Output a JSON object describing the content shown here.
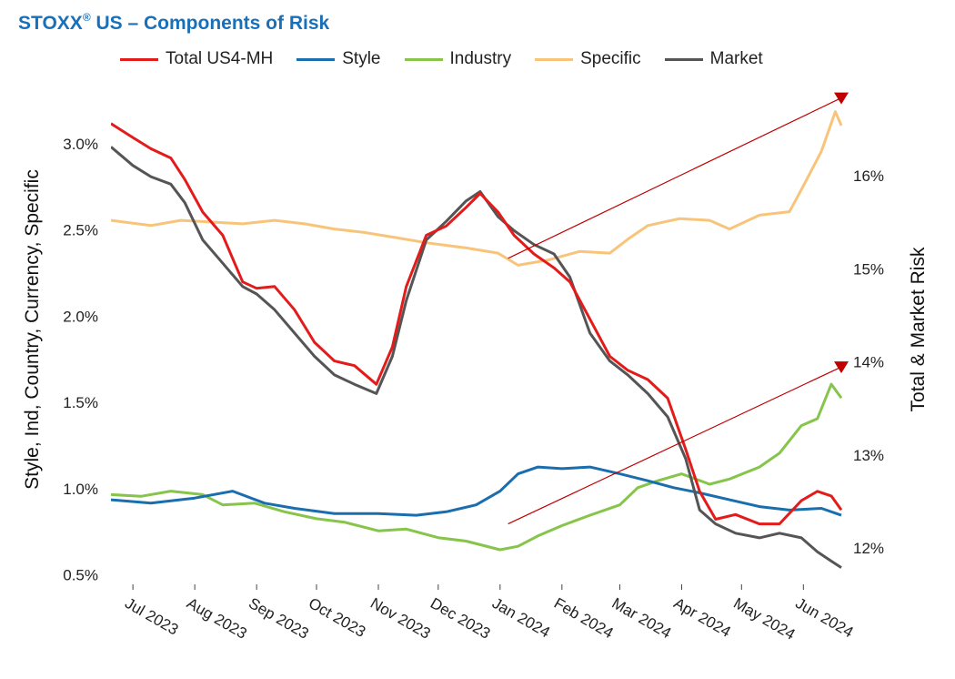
{
  "title": {
    "prefix": "STOXX",
    "sup": "®",
    "rest": " US – Components of Risk"
  },
  "chart_data": {
    "type": "line",
    "title": "STOXX® US – Components of Risk",
    "x_tick_labels": [
      "Jul 2023",
      "Aug 2023",
      "Sep 2023",
      "Oct 2023",
      "Nov 2023",
      "Dec 2023",
      "Jan 2024",
      "Feb 2024",
      "Mar 2024",
      "Apr 2024",
      "May 2024",
      "Jun 2024"
    ],
    "x_range": [
      "2023-06-20",
      "2024-06-20"
    ],
    "y_left": {
      "label": "Style, Ind, Country, Currency, Specific",
      "ticks": [
        0.5,
        1.0,
        1.5,
        2.0,
        2.5,
        3.0
      ],
      "tick_labels": [
        "0.5%",
        "1.0%",
        "1.5%",
        "2.0%",
        "2.5%",
        "3.0%"
      ],
      "range": [
        0.45,
        3.3
      ]
    },
    "y_right": {
      "label": "Total & Market Risk",
      "ticks": [
        12,
        13,
        14,
        15,
        16
      ],
      "tick_labels": [
        "12%",
        "13%",
        "14%",
        "15%",
        "16%"
      ],
      "range": [
        11.62,
        16.9
      ]
    },
    "legend_position": "top",
    "series": [
      {
        "name": "Total US4-MH",
        "axis": "right",
        "color": "#e31b1b",
        "points": [
          [
            "2023-06-20",
            16.55
          ],
          [
            "2023-07-01",
            16.4
          ],
          [
            "2023-07-10",
            16.28
          ],
          [
            "2023-07-20",
            16.18
          ],
          [
            "2023-07-27",
            15.95
          ],
          [
            "2023-08-05",
            15.6
          ],
          [
            "2023-08-15",
            15.35
          ],
          [
            "2023-08-25",
            14.85
          ],
          [
            "2023-09-01",
            14.78
          ],
          [
            "2023-09-10",
            14.8
          ],
          [
            "2023-09-20",
            14.55
          ],
          [
            "2023-09-30",
            14.2
          ],
          [
            "2023-10-10",
            14.0
          ],
          [
            "2023-10-20",
            13.95
          ],
          [
            "2023-10-31",
            13.75
          ],
          [
            "2023-11-08",
            14.15
          ],
          [
            "2023-11-15",
            14.8
          ],
          [
            "2023-11-25",
            15.35
          ],
          [
            "2023-12-05",
            15.45
          ],
          [
            "2023-12-15",
            15.65
          ],
          [
            "2023-12-22",
            15.8
          ],
          [
            "2023-12-31",
            15.6
          ],
          [
            "2024-01-08",
            15.35
          ],
          [
            "2024-01-18",
            15.15
          ],
          [
            "2024-01-28",
            15.0
          ],
          [
            "2024-02-05",
            14.85
          ],
          [
            "2024-02-15",
            14.45
          ],
          [
            "2024-02-25",
            14.05
          ],
          [
            "2024-03-05",
            13.9
          ],
          [
            "2024-03-15",
            13.8
          ],
          [
            "2024-03-25",
            13.6
          ],
          [
            "2024-04-03",
            13.05
          ],
          [
            "2024-04-10",
            12.6
          ],
          [
            "2024-04-18",
            12.3
          ],
          [
            "2024-04-28",
            12.35
          ],
          [
            "2024-05-10",
            12.25
          ],
          [
            "2024-05-20",
            12.25
          ],
          [
            "2024-05-31",
            12.5
          ],
          [
            "2024-06-08",
            12.6
          ],
          [
            "2024-06-15",
            12.55
          ],
          [
            "2024-06-20",
            12.4
          ]
        ]
      },
      {
        "name": "Style",
        "axis": "left",
        "color": "#1a6ead",
        "points": [
          [
            "2023-06-20",
            0.93
          ],
          [
            "2023-07-10",
            0.91
          ],
          [
            "2023-08-01",
            0.94
          ],
          [
            "2023-08-20",
            0.98
          ],
          [
            "2023-09-05",
            0.91
          ],
          [
            "2023-09-20",
            0.88
          ],
          [
            "2023-10-10",
            0.85
          ],
          [
            "2023-11-01",
            0.85
          ],
          [
            "2023-11-20",
            0.84
          ],
          [
            "2023-12-05",
            0.86
          ],
          [
            "2023-12-20",
            0.9
          ],
          [
            "2024-01-01",
            0.98
          ],
          [
            "2024-01-10",
            1.08
          ],
          [
            "2024-01-20",
            1.12
          ],
          [
            "2024-02-01",
            1.11
          ],
          [
            "2024-02-15",
            1.12
          ],
          [
            "2024-03-01",
            1.08
          ],
          [
            "2024-03-15",
            1.04
          ],
          [
            "2024-03-28",
            1.0
          ],
          [
            "2024-04-10",
            0.97
          ],
          [
            "2024-04-25",
            0.93
          ],
          [
            "2024-05-10",
            0.89
          ],
          [
            "2024-05-25",
            0.87
          ],
          [
            "2024-06-10",
            0.88
          ],
          [
            "2024-06-20",
            0.84
          ]
        ]
      },
      {
        "name": "Industry",
        "axis": "left",
        "color": "#86c44a",
        "points": [
          [
            "2023-06-20",
            0.96
          ],
          [
            "2023-07-05",
            0.95
          ],
          [
            "2023-07-20",
            0.98
          ],
          [
            "2023-08-05",
            0.96
          ],
          [
            "2023-08-15",
            0.9
          ],
          [
            "2023-08-31",
            0.91
          ],
          [
            "2023-09-15",
            0.86
          ],
          [
            "2023-10-01",
            0.82
          ],
          [
            "2023-10-15",
            0.8
          ],
          [
            "2023-11-01",
            0.75
          ],
          [
            "2023-11-15",
            0.76
          ],
          [
            "2023-12-01",
            0.71
          ],
          [
            "2023-12-15",
            0.69
          ],
          [
            "2024-01-01",
            0.64
          ],
          [
            "2024-01-10",
            0.66
          ],
          [
            "2024-01-20",
            0.72
          ],
          [
            "2024-02-01",
            0.78
          ],
          [
            "2024-02-15",
            0.84
          ],
          [
            "2024-03-01",
            0.9
          ],
          [
            "2024-03-10",
            1.0
          ],
          [
            "2024-03-20",
            1.04
          ],
          [
            "2024-04-01",
            1.08
          ],
          [
            "2024-04-15",
            1.02
          ],
          [
            "2024-04-25",
            1.05
          ],
          [
            "2024-05-10",
            1.12
          ],
          [
            "2024-05-20",
            1.2
          ],
          [
            "2024-05-31",
            1.36
          ],
          [
            "2024-06-08",
            1.4
          ],
          [
            "2024-06-15",
            1.6
          ],
          [
            "2024-06-20",
            1.52
          ]
        ]
      },
      {
        "name": "Specific",
        "axis": "left",
        "color": "#f8c47a",
        "points": [
          [
            "2023-06-20",
            2.55
          ],
          [
            "2023-07-10",
            2.52
          ],
          [
            "2023-07-25",
            2.55
          ],
          [
            "2023-08-10",
            2.54
          ],
          [
            "2023-08-25",
            2.53
          ],
          [
            "2023-09-10",
            2.55
          ],
          [
            "2023-09-25",
            2.53
          ],
          [
            "2023-10-10",
            2.5
          ],
          [
            "2023-10-25",
            2.48
          ],
          [
            "2023-11-10",
            2.45
          ],
          [
            "2023-11-25",
            2.42
          ],
          [
            "2023-12-15",
            2.39
          ],
          [
            "2023-12-31",
            2.36
          ],
          [
            "2024-01-10",
            2.29
          ],
          [
            "2024-01-25",
            2.32
          ],
          [
            "2024-02-10",
            2.37
          ],
          [
            "2024-02-25",
            2.36
          ],
          [
            "2024-03-05",
            2.44
          ],
          [
            "2024-03-15",
            2.52
          ],
          [
            "2024-03-31",
            2.56
          ],
          [
            "2024-04-15",
            2.55
          ],
          [
            "2024-04-25",
            2.5
          ],
          [
            "2024-05-10",
            2.58
          ],
          [
            "2024-05-25",
            2.6
          ],
          [
            "2024-06-01",
            2.75
          ],
          [
            "2024-06-10",
            2.95
          ],
          [
            "2024-06-17",
            3.18
          ],
          [
            "2024-06-20",
            3.1
          ]
        ]
      },
      {
        "name": "Market",
        "axis": "right",
        "color": "#555555",
        "points": [
          [
            "2023-06-20",
            16.3
          ],
          [
            "2023-07-01",
            16.1
          ],
          [
            "2023-07-10",
            15.98
          ],
          [
            "2023-07-20",
            15.9
          ],
          [
            "2023-07-27",
            15.7
          ],
          [
            "2023-08-05",
            15.3
          ],
          [
            "2023-08-15",
            15.05
          ],
          [
            "2023-08-25",
            14.8
          ],
          [
            "2023-09-01",
            14.72
          ],
          [
            "2023-09-10",
            14.55
          ],
          [
            "2023-09-20",
            14.3
          ],
          [
            "2023-09-30",
            14.05
          ],
          [
            "2023-10-10",
            13.85
          ],
          [
            "2023-10-20",
            13.75
          ],
          [
            "2023-10-31",
            13.65
          ],
          [
            "2023-11-08",
            14.05
          ],
          [
            "2023-11-15",
            14.65
          ],
          [
            "2023-11-25",
            15.3
          ],
          [
            "2023-12-05",
            15.5
          ],
          [
            "2023-12-15",
            15.72
          ],
          [
            "2023-12-22",
            15.82
          ],
          [
            "2023-12-31",
            15.55
          ],
          [
            "2024-01-08",
            15.4
          ],
          [
            "2024-01-18",
            15.25
          ],
          [
            "2024-01-28",
            15.15
          ],
          [
            "2024-02-05",
            14.9
          ],
          [
            "2024-02-15",
            14.3
          ],
          [
            "2024-02-25",
            14.0
          ],
          [
            "2024-03-05",
            13.85
          ],
          [
            "2024-03-15",
            13.65
          ],
          [
            "2024-03-25",
            13.4
          ],
          [
            "2024-04-03",
            12.95
          ],
          [
            "2024-04-10",
            12.4
          ],
          [
            "2024-04-18",
            12.25
          ],
          [
            "2024-04-28",
            12.15
          ],
          [
            "2024-05-10",
            12.1
          ],
          [
            "2024-05-20",
            12.15
          ],
          [
            "2024-05-31",
            12.1
          ],
          [
            "2024-06-08",
            11.95
          ],
          [
            "2024-06-15",
            11.85
          ],
          [
            "2024-06-20",
            11.78
          ]
        ]
      }
    ],
    "annotations": [
      {
        "type": "arrow",
        "axis": "left",
        "color": "#c00000",
        "from": [
          "2024-01-05",
          2.33
        ],
        "to": [
          "2024-06-20",
          3.26
        ]
      },
      {
        "type": "arrow",
        "axis": "left",
        "color": "#c00000",
        "from": [
          "2024-01-05",
          0.79
        ],
        "to": [
          "2024-06-20",
          1.7
        ]
      }
    ]
  }
}
